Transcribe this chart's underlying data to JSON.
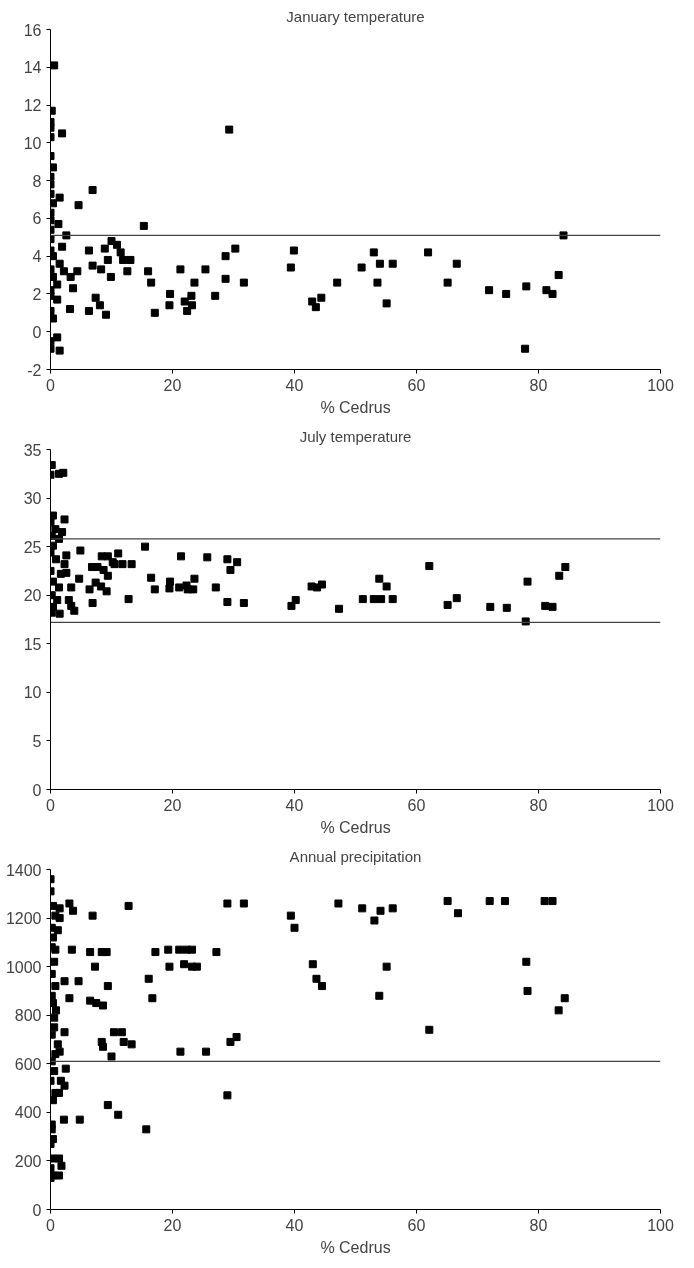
{
  "chart_data": [
    {
      "type": "scatter",
      "title": "January temperature",
      "xlabel": "% Cedrus",
      "xlim": [
        0,
        100
      ],
      "ylim": [
        -2,
        16
      ],
      "xticks": [
        0,
        20,
        40,
        60,
        80,
        100
      ],
      "yticks": [
        -2,
        0,
        2,
        4,
        6,
        8,
        10,
        12,
        14,
        16
      ],
      "marker": "square",
      "ref_lines": [
        {
          "axis": "y",
          "value": 5.1,
          "color": "#444444"
        }
      ],
      "series": [
        {
          "color": "#000000",
          "x": [
            0.6,
            0.2,
            0,
            0,
            1.9,
            0,
            0,
            0.4,
            0,
            0,
            0,
            1.5,
            0.4,
            0,
            0,
            1.3,
            0,
            2.6,
            0,
            1.9,
            0,
            0.4,
            1.5,
            0,
            2.2,
            4.4,
            0.4,
            3.3,
            1.1,
            3.7,
            0,
            1.1,
            0,
            3.2,
            0,
            0.4,
            0,
            1.1,
            0,
            1.5,
            6.9,
            4.6,
            15.3,
            6.3,
            6.9,
            8.9,
            10,
            10.9,
            11.5,
            9.4,
            8.3,
            9.9,
            11.9,
            13.1,
            12.6,
            16,
            16.5,
            7.4,
            8.1,
            6.3,
            9.1,
            17.1,
            19.6,
            19.5,
            21.3,
            22,
            22.4,
            23.2,
            23.1,
            23.6,
            25.4,
            27,
            28.7,
            28.7,
            30.3,
            31.7,
            29.3,
            39.4,
            39.9,
            42.9,
            43.5,
            44.4,
            47,
            51,
            53,
            53.6,
            54,
            56.1,
            55.1,
            61.9,
            65.1,
            66.6,
            71.9,
            74.7,
            78,
            77.8,
            81.3,
            82.3,
            83.3,
            84.1
          ],
          "values": [
            14.1,
            11.7,
            10.8,
            11.1,
            10.5,
            10.3,
            9.3,
            8.7,
            8.2,
            7.8,
            7.3,
            7.1,
            6.8,
            6.3,
            5.9,
            5.7,
            5.4,
            5.1,
            4.9,
            4.5,
            4.3,
            4.0,
            3.6,
            3.3,
            3.2,
            3.2,
            2.9,
            2.9,
            2.5,
            2.3,
            2.2,
            1.7,
            1.9,
            1.2,
            1.1,
            0.7,
            -0.5,
            -0.3,
            -0.9,
            -1.0,
            7.5,
            6.7,
            5.6,
            4.3,
            3.5,
            4.4,
            4.8,
            4.6,
            4.2,
            3.8,
            3.3,
            2.9,
            3.8,
            3.8,
            3.2,
            3.2,
            2.6,
            1.8,
            1.4,
            1.1,
            0.9,
            1.0,
            2.0,
            1.4,
            3.3,
            1.6,
            1.1,
            1.4,
            1.9,
            2.6,
            3.3,
            1.9,
            4.0,
            2.8,
            4.4,
            2.6,
            10.7,
            3.4,
            4.3,
            1.6,
            1.3,
            1.8,
            2.6,
            3.4,
            4.2,
            2.6,
            3.6,
            3.6,
            1.5,
            4.2,
            2.6,
            3.6,
            2.2,
            2.0,
            2.4,
            -0.9,
            2.2,
            2.0,
            3.0,
            5.1
          ]
        }
      ]
    },
    {
      "type": "scatter",
      "title": "July temperature",
      "xlabel": "% Cedrus",
      "xlim": [
        0,
        100
      ],
      "ylim": [
        0,
        35
      ],
      "xticks": [
        0,
        20,
        40,
        60,
        80,
        100
      ],
      "yticks": [
        0,
        5,
        10,
        15,
        20,
        25,
        30,
        35
      ],
      "marker": "square",
      "ref_lines": [
        {
          "axis": "y",
          "value": 25.8,
          "color": "#444444"
        },
        {
          "axis": "y",
          "value": 17.2,
          "color": "#444444"
        }
      ],
      "series": [
        {
          "color": "#000000",
          "x": [
            0.2,
            0,
            1.4,
            2.1,
            0.4,
            0,
            2.3,
            0.8,
            1.9,
            0.2,
            1.4,
            0.4,
            0,
            2.6,
            0.9,
            2.3,
            0,
            1.7,
            2.6,
            0.4,
            1.4,
            3.4,
            0.2,
            1.1,
            3,
            0.4,
            3.4,
            0.2,
            1.5,
            3.9,
            4.9,
            4.7,
            6.4,
            6.8,
            7.7,
            6.9,
            7.4,
            8.3,
            8.4,
            9.4,
            8.7,
            9.2,
            9.4,
            10.2,
            11.1,
            10.5,
            11.8,
            13.3,
            12.8,
            15.5,
            16.5,
            17.1,
            19.6,
            19.5,
            21.4,
            21.1,
            22.3,
            22.5,
            23.4,
            23.6,
            25.7,
            27.1,
            29,
            29.5,
            30.6,
            29,
            31.7,
            39.5,
            40.2,
            42.8,
            43.7,
            44.5,
            47.3,
            51.2,
            53,
            54.2,
            53.9,
            55.1,
            56.1,
            62.1,
            65.1,
            66.6,
            72.1,
            74.8,
            77.9,
            78.2,
            81.1,
            82.3,
            83.4,
            84.4
          ],
          "values": [
            33.4,
            32.4,
            32.5,
            32.6,
            28.2,
            27.5,
            27.8,
            26.8,
            26.5,
            26.1,
            25.8,
            25.1,
            24.4,
            24.1,
            23.7,
            23.2,
            22.5,
            22.2,
            22.3,
            21.4,
            20.8,
            20.8,
            20.0,
            19.5,
            19.5,
            18.8,
            18.9,
            18.2,
            18.1,
            18.4,
            24.6,
            21.7,
            20.6,
            22.9,
            22.9,
            19.2,
            21.3,
            20.9,
            24.0,
            24.0,
            22.6,
            20.4,
            22.0,
            23.4,
            24.3,
            23.2,
            23.2,
            23.2,
            19.6,
            25.0,
            21.8,
            20.6,
            21.4,
            20.7,
            24.0,
            20.8,
            21.0,
            20.6,
            20.6,
            21.7,
            23.9,
            20.8,
            23.7,
            22.6,
            23.4,
            19.3,
            19.2,
            18.9,
            19.5,
            20.9,
            20.8,
            21.1,
            18.6,
            19.6,
            19.6,
            19.6,
            21.7,
            20.9,
            19.6,
            23.0,
            19.0,
            19.7,
            18.8,
            18.7,
            17.3,
            21.4,
            18.9,
            18.8,
            22.0,
            22.9
          ]
        }
      ]
    },
    {
      "type": "scatter",
      "title": "Annual precipitation",
      "xlabel": "% Cedrus",
      "xlim": [
        0,
        100
      ],
      "ylim": [
        0,
        1400
      ],
      "xticks": [
        0,
        20,
        40,
        60,
        80,
        100
      ],
      "yticks": [
        0,
        200,
        400,
        600,
        800,
        1000,
        1200,
        1400
      ],
      "marker": "square",
      "ref_lines": [
        {
          "axis": "y",
          "value": 610,
          "color": "#444444"
        }
      ],
      "series": [
        {
          "color": "#000000",
          "x": [
            0,
            0,
            0.4,
            1.5,
            0.8,
            1.5,
            0.2,
            1.2,
            0.4,
            0.2,
            0.8,
            0.6,
            0.2,
            0.8,
            0.2,
            0.4,
            0.9,
            0.6,
            0.6,
            0.2,
            1.2,
            0.8,
            1.5,
            0.2,
            0.6,
            0,
            1.7,
            2.3,
            0.8,
            1.4,
            0.4,
            0.2,
            0.2,
            0.4,
            0,
            0.4,
            1.4,
            1.8,
            0,
            0.4,
            1.4,
            0,
            2.3,
            3.1,
            3.5,
            2.3,
            2.5,
            2.2,
            3.1,
            3.7,
            4.6,
            4.8,
            6.9,
            6.5,
            7.3,
            6.5,
            7.5,
            8.6,
            8.4,
            9.2,
            9.4,
            8.4,
            8.6,
            10,
            9.4,
            10.4,
            11.7,
            12,
            11.1,
            12.8,
            13.3,
            15.7,
            16.1,
            16.7,
            17.2,
            19.3,
            19.5,
            21.3,
            21.1,
            22.3,
            23.2,
            21.9,
            23.2,
            24,
            25.5,
            27.2,
            29,
            29,
            29.5,
            30.5,
            31.7,
            39.4,
            40,
            43,
            43.6,
            44.5,
            47.2,
            51.1,
            53.1,
            53.9,
            54.1,
            55.1,
            56.1,
            62.1,
            65.1,
            66.8,
            72,
            74.5,
            78,
            78.2,
            81,
            82.3,
            83.3,
            84.3
          ],
          "values": [
            1360,
            1310,
            1250,
            1240,
            1210,
            1200,
            1160,
            1150,
            1120,
            1080,
            1070,
            1020,
            970,
            920,
            880,
            850,
            820,
            790,
            750,
            720,
            680,
            640,
            650,
            610,
            570,
            530,
            530,
            510,
            480,
            480,
            450,
            350,
            330,
            290,
            270,
            210,
            210,
            180,
            170,
            140,
            140,
            130,
            940,
            870,
            1070,
            730,
            580,
            370,
            1260,
            1230,
            940,
            370,
            1210,
            1060,
            1000,
            860,
            850,
            840,
            1060,
            1060,
            920,
            690,
            670,
            630,
            430,
            730,
            730,
            690,
            390,
            1250,
            680,
            330,
            950,
            870,
            1060,
            1070,
            1000,
            650,
            1070,
            1070,
            1070,
            1010,
            1000,
            1000,
            650,
            1060,
            1260,
            470,
            690,
            710,
            1260,
            1210,
            1160,
            1010,
            950,
            920,
            1260,
            1240,
            1190,
            880,
            1230,
            1000,
            1240,
            740,
            1270,
            1220,
            1270,
            1270,
            1020,
            900,
            1270,
            1270,
            820,
            870
          ]
        }
      ]
    }
  ]
}
